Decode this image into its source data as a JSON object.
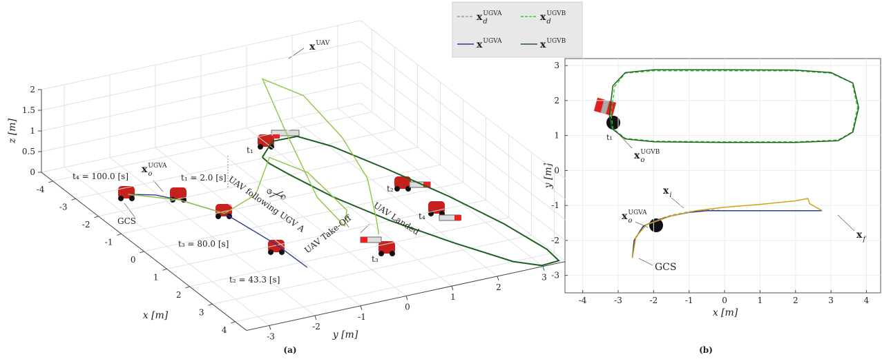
{
  "chart_data": [
    {
      "type": "line3d",
      "label": "(a)",
      "xlabel": "x [m]",
      "ylabel": "y [m]",
      "zlabel": "z [m]",
      "xlim": [
        -4.5,
        4.5
      ],
      "ylim": [
        -3.5,
        3.5
      ],
      "zlim": [
        0,
        2
      ],
      "xticks": [
        -4,
        -3,
        -2,
        -1,
        0,
        1,
        2,
        3,
        4
      ],
      "yticks": [
        -3,
        -2,
        -1,
        0,
        1,
        2,
        3
      ],
      "zticks": [
        0,
        0.5,
        1,
        1.5,
        2
      ],
      "grid": true,
      "series": [
        {
          "color": "#2b3a8c",
          "x": [
            -2.69,
            -2.4,
            -1.95,
            -0.91,
            0.97,
            2.28
          ],
          "y": [
            -2.51,
            -2.05,
            -1.75,
            -1.28,
            -1.08,
            -1.06
          ],
          "z": [
            0,
            0,
            0,
            0,
            0,
            0
          ]
        },
        {
          "color": "#1b5e20",
          "x": [
            -3.05,
            -3.66,
            -3.64,
            -2.88,
            -1.34,
            0.49,
            2.24,
            3.78,
            4.4,
            4.45,
            4.0,
            2.6,
            1.0,
            -0.6,
            -2.0,
            -2.7,
            -3.05
          ],
          "y": [
            0.62,
            1.15,
            1.68,
            2.05,
            2.49,
            2.95,
            3.28,
            3.45,
            3.4,
            3.0,
            2.6,
            2.0,
            1.4,
            0.95,
            0.7,
            0.6,
            0.62
          ],
          "z": [
            0,
            0,
            0,
            0,
            0,
            0,
            0,
            0,
            0,
            0,
            0,
            0,
            0,
            0,
            0,
            0,
            0
          ]
        },
        {
          "color": "#8cc63f",
          "x": [
            -2.69,
            -1.95,
            -0.91,
            -0.9,
            -1.5,
            -1.0,
            0.3,
            0.8,
            0.0,
            -1.8,
            -3.4,
            -3.0,
            -1.5,
            0.0,
            1.2,
            1.5
          ],
          "y": [
            -2.51,
            -1.75,
            -1.28,
            -0.6,
            0.0,
            0.6,
            0.8,
            0.5,
            0.3,
            0.5,
            0.8,
            1.5,
            1.6,
            1.4,
            1.0,
            0.9
          ],
          "z": [
            0,
            0,
            0,
            0.3,
            0.8,
            0.5,
            0.1,
            0,
            0.4,
            1.2,
            1.7,
            1.3,
            0.9,
            0.6,
            0.2,
            0
          ]
        }
      ],
      "annotations": [
        {
          "text": "x",
          "sup": "UAV"
        },
        {
          "text": "t₄ = 100.0 [s]"
        },
        {
          "text": "x",
          "sub": "o",
          "sup": "UGVA"
        },
        {
          "text": "t₁ = 2.0 [s]"
        },
        {
          "text": "GCS"
        },
        {
          "text": "t₃ = 80.0 [s]"
        },
        {
          "text": "t₂ = 43.3 [s]"
        },
        {
          "text": "t₁"
        },
        {
          "text": "t₂"
        },
        {
          "text": "t₄"
        },
        {
          "text": "t₃"
        },
        {
          "text": "UAV following UGV A"
        },
        {
          "text": "UAV Take-Off"
        },
        {
          "text": "UAV Landed"
        }
      ]
    },
    {
      "type": "line",
      "label": "(b)",
      "xlabel": "x [m]",
      "ylabel": "y [m]",
      "xlim": [
        -4.5,
        4.4
      ],
      "ylim": [
        -3.5,
        3.2
      ],
      "xticks": [
        -4,
        -3,
        -2,
        -1,
        0,
        1,
        2,
        3,
        4
      ],
      "yticks": [
        -3,
        -2,
        -1,
        0,
        1,
        2,
        3
      ],
      "grid": true,
      "series": [
        {
          "name": "x",
          "subscript": "d",
          "superscript": "UGVA",
          "color": "#9a9a9a",
          "dashed": true,
          "x": [
            -2.6,
            -2.55,
            -2.3,
            -2,
            -1.5,
            -1,
            -0.5,
            0,
            1,
            2,
            2.75
          ],
          "y": [
            -2.5,
            -2.0,
            -1.62,
            -1.45,
            -1.28,
            -1.18,
            -1.13,
            -1.15,
            -1.15,
            -1.15,
            -1.15
          ]
        },
        {
          "name": "x",
          "subscript": "d",
          "superscript": "UGVB",
          "color": "#33cc33",
          "dashed": true,
          "x": [
            -3.2,
            -3.1,
            -2.8,
            -2,
            0,
            2,
            3,
            3.6,
            3.75,
            3.6,
            3.2,
            2,
            0,
            -2,
            -2.8,
            -3.15,
            -3.2
          ],
          "y": [
            1.6,
            2.4,
            2.78,
            2.85,
            2.85,
            2.85,
            2.78,
            2.5,
            1.8,
            1.1,
            0.87,
            0.82,
            0.82,
            0.84,
            0.92,
            1.2,
            1.6
          ]
        },
        {
          "name": "x",
          "superscript": "UGVA",
          "color": "#2b3a8c",
          "dashed": false,
          "x": [
            -2.6,
            -2.55,
            -2.3,
            -2,
            -1.5,
            -1,
            -0.5,
            0,
            1,
            2,
            2.75
          ],
          "y": [
            -2.5,
            -2.0,
            -1.6,
            -1.45,
            -1.3,
            -1.2,
            -1.15,
            -1.15,
            -1.15,
            -1.15,
            -1.15
          ]
        },
        {
          "name": "x",
          "superscript": "UGVB",
          "color": "#1b5e20",
          "dashed": false,
          "x": [
            -3.25,
            -3.15,
            -2.8,
            -2,
            0,
            2,
            3,
            3.62,
            3.78,
            3.62,
            3.2,
            2,
            0,
            -2,
            -2.8,
            -3.18,
            -3.25
          ],
          "y": [
            1.6,
            2.42,
            2.8,
            2.88,
            2.88,
            2.87,
            2.8,
            2.5,
            1.8,
            1.1,
            0.85,
            0.8,
            0.8,
            0.82,
            0.9,
            1.2,
            1.6
          ]
        },
        {
          "color": "#d4a017",
          "dashed": false,
          "x": [
            -2.6,
            -2.5,
            -2.2,
            -1.5,
            -0.8,
            0,
            1,
            2,
            2.35,
            2.4,
            2.75
          ],
          "y": [
            -2.5,
            -1.9,
            -1.55,
            -1.3,
            -1.15,
            -1.05,
            -0.97,
            -0.87,
            -0.8,
            -0.95,
            -1.15
          ]
        }
      ],
      "annotations": [
        {
          "text": "t₁"
        },
        {
          "text": "x",
          "sub": "o",
          "sup": "UGVB"
        },
        {
          "text": "x",
          "sub": "i"
        },
        {
          "text": "x",
          "sub": "o",
          "sup": "UGVA"
        },
        {
          "text": "x",
          "sub": "f"
        },
        {
          "text": "GCS"
        }
      ]
    }
  ]
}
